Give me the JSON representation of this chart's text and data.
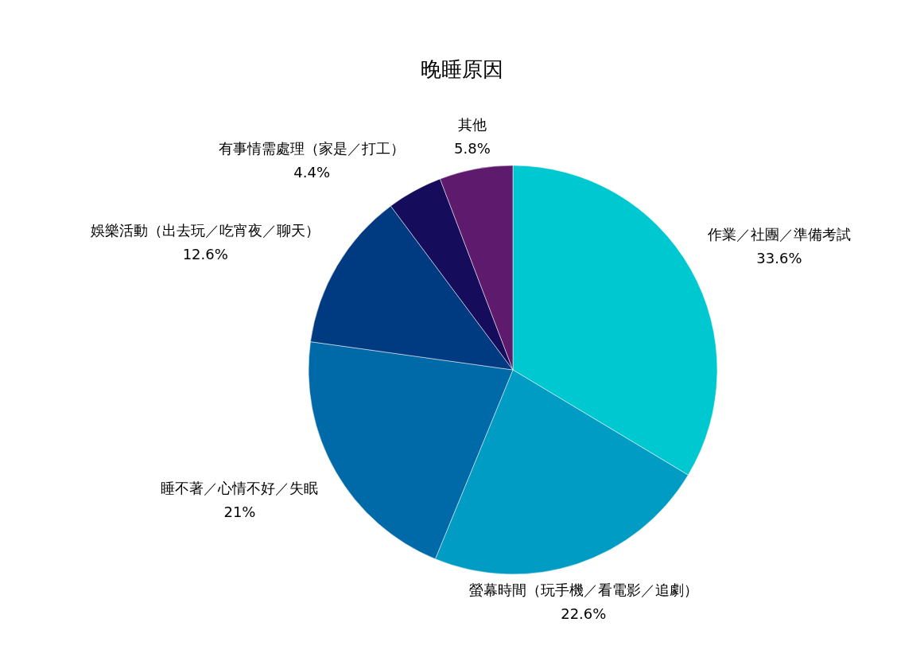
{
  "chart_data": {
    "type": "pie",
    "title": "晚睡原因",
    "categories": [
      "作業／社團／準備考試",
      "螢幕時間（玩手機／看電影／追劇）",
      "睡不著／心情不好／失眠",
      "娛樂活動（出去玩／吃宵夜／聊天）",
      "有事情需處理（家是／打工）",
      "其他"
    ],
    "values": [
      33.6,
      22.6,
      21,
      12.6,
      4.4,
      5.8
    ],
    "value_labels": [
      "33.6%",
      "22.6%",
      "21%",
      "12.6%",
      "4.4%",
      "5.8%"
    ],
    "colors": [
      "#00c8d0",
      "#009cc4",
      "#006aa8",
      "#003a80",
      "#160c5c",
      "#5e1a6c"
    ]
  }
}
